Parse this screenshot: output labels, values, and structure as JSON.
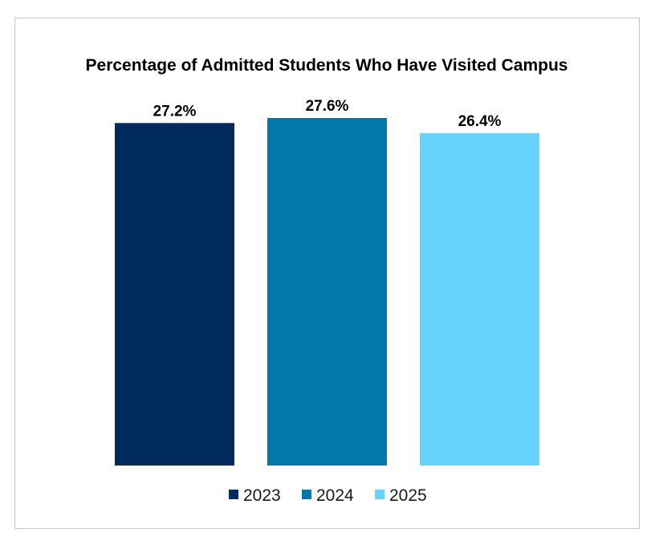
{
  "chart_data": {
    "type": "bar",
    "title": "Percentage of Admitted Students Who Have Visited Campus",
    "categories": [
      "2023",
      "2024",
      "2025"
    ],
    "values": [
      27.2,
      27.6,
      26.4
    ],
    "value_labels": [
      "27.2%",
      "27.6%",
      "26.4%"
    ],
    "colors": [
      "#002b5c",
      "#0079a8",
      "#66d4ff"
    ],
    "legend": {
      "entries": [
        "2023",
        "2024",
        "2025"
      ],
      "position": "bottom"
    },
    "xlabel": "",
    "ylabel": "",
    "ylim": [
      0,
      27.6
    ],
    "grid": false,
    "axes_visible": false
  }
}
